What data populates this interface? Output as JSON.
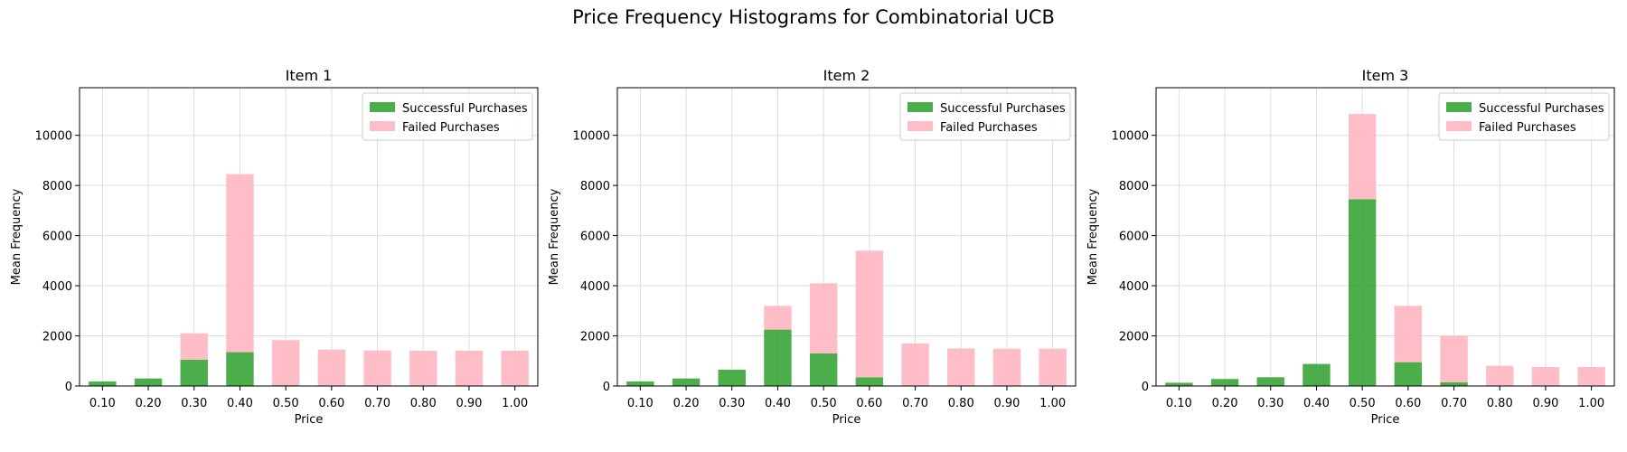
{
  "suptitle": "Price Frequency Histograms for Combinatorial UCB",
  "colors": {
    "success": "#2ca02c",
    "failed": "#ffb6c1",
    "grid": "#dddddd"
  },
  "chart_data": [
    {
      "type": "bar",
      "title": "Item 1",
      "xlabel": "Price",
      "ylabel": "Mean Frequency",
      "categories": [
        "0.10",
        "0.20",
        "0.30",
        "0.40",
        "0.50",
        "0.60",
        "0.70",
        "0.80",
        "0.90",
        "1.00"
      ],
      "ylim": [
        0,
        11900
      ],
      "yticks": [
        0,
        2000,
        4000,
        6000,
        8000,
        10000
      ],
      "grid": true,
      "legend": "top-right",
      "stacked": true,
      "series": [
        {
          "name": "Successful Purchases",
          "values": [
            180,
            300,
            1050,
            1350,
            30,
            0,
            0,
            0,
            0,
            0
          ]
        },
        {
          "name": "Failed Purchases",
          "values": [
            0,
            0,
            1050,
            7100,
            1800,
            1450,
            1420,
            1410,
            1410,
            1410
          ]
        }
      ]
    },
    {
      "type": "bar",
      "title": "Item 2",
      "xlabel": "Price",
      "ylabel": "Mean Frequency",
      "categories": [
        "0.10",
        "0.20",
        "0.30",
        "0.40",
        "0.50",
        "0.60",
        "0.70",
        "0.80",
        "0.90",
        "1.00"
      ],
      "ylim": [
        0,
        11900
      ],
      "yticks": [
        0,
        2000,
        4000,
        6000,
        8000,
        10000
      ],
      "grid": true,
      "legend": "top-right",
      "stacked": true,
      "series": [
        {
          "name": "Successful Purchases",
          "values": [
            180,
            300,
            650,
            2250,
            1300,
            350,
            20,
            0,
            0,
            0
          ]
        },
        {
          "name": "Failed Purchases",
          "values": [
            0,
            0,
            0,
            950,
            2800,
            5050,
            1680,
            1500,
            1490,
            1490
          ]
        }
      ]
    },
    {
      "type": "bar",
      "title": "Item 3",
      "xlabel": "Price",
      "ylabel": "Mean Frequency",
      "categories": [
        "0.10",
        "0.20",
        "0.30",
        "0.40",
        "0.50",
        "0.60",
        "0.70",
        "0.80",
        "0.90",
        "1.00"
      ],
      "ylim": [
        0,
        11900
      ],
      "yticks": [
        0,
        2000,
        4000,
        6000,
        8000,
        10000
      ],
      "grid": true,
      "legend": "top-right",
      "stacked": true,
      "series": [
        {
          "name": "Successful Purchases",
          "values": [
            130,
            280,
            350,
            880,
            7450,
            950,
            150,
            0,
            0,
            0
          ]
        },
        {
          "name": "Failed Purchases",
          "values": [
            0,
            0,
            0,
            0,
            3400,
            2250,
            1850,
            800,
            760,
            760
          ]
        }
      ]
    }
  ]
}
